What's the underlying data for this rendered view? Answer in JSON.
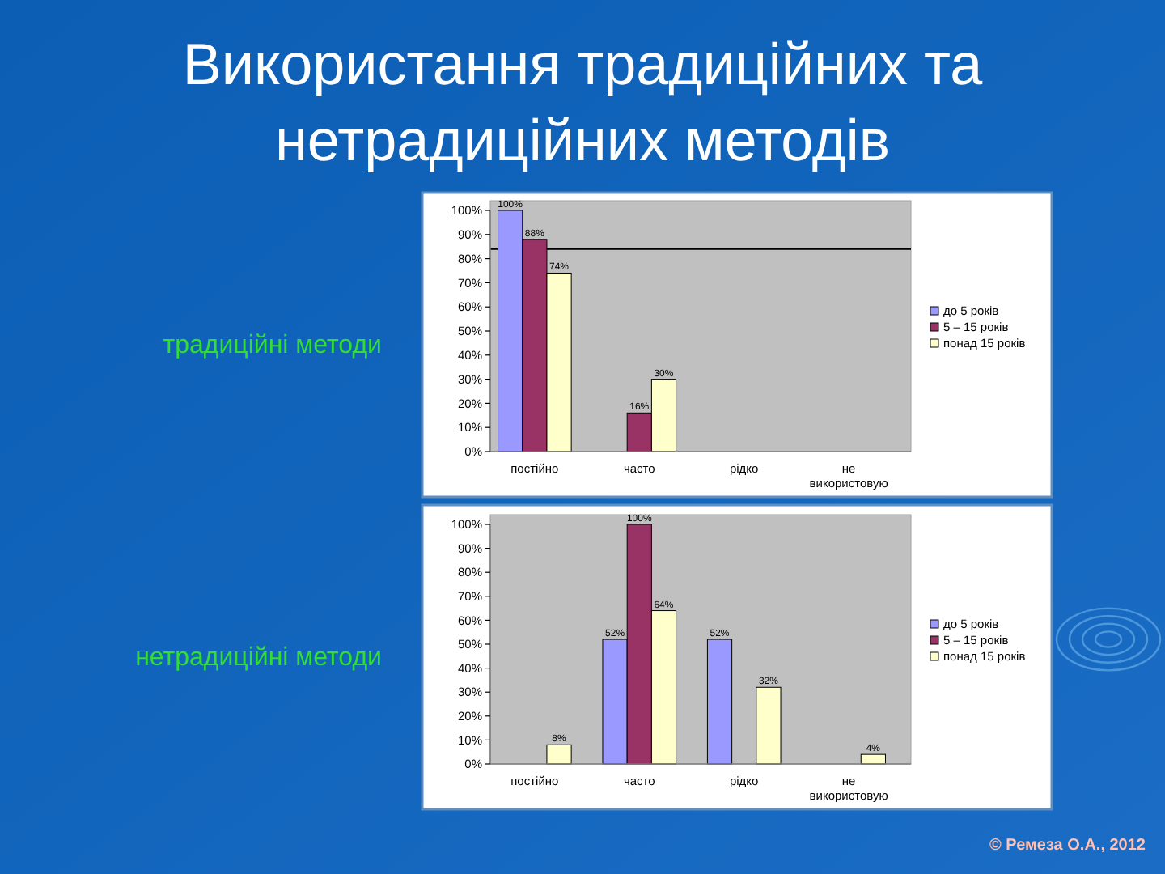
{
  "chart_data": [
    {
      "type": "bar",
      "title": "Використання традиційних та нетрадиційних методів",
      "ylabel": "традиційні методи",
      "categories": [
        "постійно",
        "часто",
        "рідко",
        "не використовую"
      ],
      "series": [
        {
          "name": "до 5 років",
          "color": "#9999ff",
          "values": [
            100,
            null,
            null,
            null
          ],
          "value_labels": [
            "100%",
            null,
            null,
            null
          ]
        },
        {
          "name": "5 – 15 років",
          "color": "#993366",
          "values": [
            88,
            16,
            null,
            null
          ],
          "value_labels": [
            "88%",
            "16%",
            null,
            null
          ]
        },
        {
          "name": "понад 15 років",
          "color": "#ffffcc",
          "values": [
            74,
            30,
            null,
            null
          ],
          "value_labels": [
            "74%",
            "30%",
            null,
            null
          ]
        }
      ],
      "ylim": [
        0,
        100
      ],
      "yticks": [
        {
          "value": 0,
          "label": "0%"
        },
        {
          "value": 10,
          "label": "10%"
        },
        {
          "value": 20,
          "label": "20%"
        },
        {
          "value": 30,
          "label": "30%"
        },
        {
          "value": 40,
          "label": "40%"
        },
        {
          "value": 50,
          "label": "50%"
        },
        {
          "value": 60,
          "label": "60%"
        },
        {
          "value": 70,
          "label": "70%"
        },
        {
          "value": 80,
          "label": "80%"
        },
        {
          "value": 90,
          "label": "90%"
        },
        {
          "value": 100,
          "label": "100%"
        }
      ],
      "ref_lines": [
        {
          "axis": "y",
          "value": 84,
          "color": "#000000"
        }
      ],
      "legend": "right"
    },
    {
      "type": "bar",
      "ylabel": "нетрадиційні методи",
      "categories": [
        "постійно",
        "часто",
        "рідко",
        "не використовую"
      ],
      "series": [
        {
          "name": "до 5 років",
          "color": "#9999ff",
          "values": [
            null,
            52,
            52,
            null
          ],
          "value_labels": [
            null,
            "52%",
            "52%",
            null
          ]
        },
        {
          "name": "5 – 15 років",
          "color": "#993366",
          "values": [
            null,
            100,
            null,
            null
          ],
          "value_labels": [
            null,
            "100%",
            null,
            null
          ]
        },
        {
          "name": "понад 15 років",
          "color": "#ffffcc",
          "values": [
            8,
            64,
            32,
            4
          ],
          "value_labels": [
            "8%",
            "64%",
            "32%",
            "4%"
          ]
        }
      ],
      "ylim": [
        0,
        100
      ],
      "yticks": [
        {
          "value": 0,
          "label": "0%"
        },
        {
          "value": 10,
          "label": "10%"
        },
        {
          "value": 20,
          "label": "20%"
        },
        {
          "value": 30,
          "label": "30%"
        },
        {
          "value": 40,
          "label": "40%"
        },
        {
          "value": 50,
          "label": "50%"
        },
        {
          "value": 60,
          "label": "60%"
        },
        {
          "value": 70,
          "label": "70%"
        },
        {
          "value": 80,
          "label": "80%"
        },
        {
          "value": 90,
          "label": "90%"
        },
        {
          "value": 100,
          "label": "100%"
        }
      ],
      "legend": "right",
      "annotations": [
        "© Ремеза О.А., 2012"
      ]
    }
  ]
}
